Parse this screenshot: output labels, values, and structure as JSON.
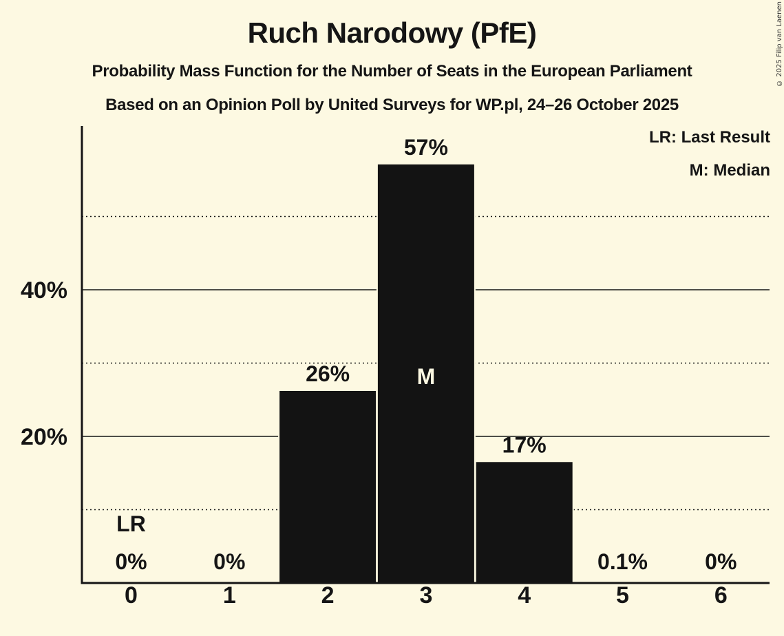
{
  "title": "Ruch Narodowy (PfE)",
  "subtitle_1": "Probability Mass Function for the Number of Seats in the European Parliament",
  "subtitle_2": "Based on an Opinion Poll by United Surveys for WP.pl, 24–26 October 2025",
  "copyright": "© 2025 Filip van Laenen",
  "legend": {
    "lr": "LR: Last Result",
    "m": "M: Median"
  },
  "colors": {
    "background": "#fdf9e2",
    "bar": "#131313",
    "text": "#151515",
    "median_marker": "#fdf9e2"
  },
  "chart_data": {
    "type": "bar",
    "title": "Ruch Narodowy (PfE)",
    "subtitle": "Probability Mass Function for the Number of Seats in the European Parliament",
    "xlabel": "",
    "ylabel": "",
    "categories": [
      "0",
      "1",
      "2",
      "3",
      "4",
      "5",
      "6"
    ],
    "values": [
      0,
      0,
      26.2,
      57.1,
      16.5,
      0.1,
      0
    ],
    "value_labels": [
      "0%",
      "0%",
      "26%",
      "57%",
      "17%",
      "0.1%",
      "0%"
    ],
    "ylim": [
      0,
      62
    ],
    "yticks": [
      20,
      40
    ],
    "ytick_labels": [
      "20%",
      "40%"
    ],
    "minor_gridlines": [
      10,
      30,
      50
    ],
    "grid": true,
    "annotations": [
      {
        "category": "0",
        "label": "LR",
        "meaning": "Last Result"
      },
      {
        "category": "3",
        "label": "M",
        "meaning": "Median"
      }
    ],
    "legend_position": "top-right"
  }
}
